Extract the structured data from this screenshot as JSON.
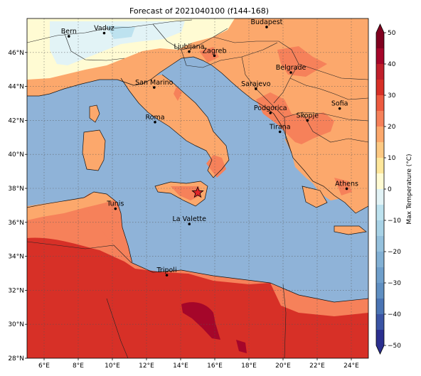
{
  "title": "Forecast of 2021040100 (f144-168)",
  "map": {
    "lon_range": [
      5,
      25
    ],
    "lat_range": [
      28,
      48
    ],
    "x_ticks": [
      {
        "lon": 6,
        "label": "6°E"
      },
      {
        "lon": 8,
        "label": "8°E"
      },
      {
        "lon": 10,
        "label": "10°E"
      },
      {
        "lon": 12,
        "label": "12°E"
      },
      {
        "lon": 14,
        "label": "14°E"
      },
      {
        "lon": 16,
        "label": "16°E"
      },
      {
        "lon": 18,
        "label": "18°E"
      },
      {
        "lon": 20,
        "label": "20°E"
      },
      {
        "lon": 22,
        "label": "22°E"
      },
      {
        "lon": 24,
        "label": "24°E"
      }
    ],
    "y_ticks": [
      {
        "lat": 28,
        "label": "28°N"
      },
      {
        "lat": 30,
        "label": "30°N"
      },
      {
        "lat": 32,
        "label": "32°N"
      },
      {
        "lat": 34,
        "label": "34°N"
      },
      {
        "lat": 36,
        "label": "36°N"
      },
      {
        "lat": 38,
        "label": "38°N"
      },
      {
        "lat": 40,
        "label": "40°N"
      },
      {
        "lat": 42,
        "label": "42°N"
      },
      {
        "lat": 44,
        "label": "44°N"
      },
      {
        "lat": 46,
        "label": "46°N"
      }
    ],
    "cities": [
      {
        "name": "Bern",
        "lon": 7.45,
        "lat": 46.95
      },
      {
        "name": "Vaduz",
        "lon": 9.52,
        "lat": 47.14
      },
      {
        "name": "Budapest",
        "lon": 19.04,
        "lat": 47.5
      },
      {
        "name": "Ljubljana",
        "lon": 14.5,
        "lat": 46.05
      },
      {
        "name": "Zagreb",
        "lon": 15.98,
        "lat": 45.81
      },
      {
        "name": "Belgrade",
        "lon": 20.46,
        "lat": 44.82
      },
      {
        "name": "San Marino",
        "lon": 12.45,
        "lat": 43.94
      },
      {
        "name": "Sarajevo",
        "lon": 18.41,
        "lat": 43.86
      },
      {
        "name": "Sofia",
        "lon": 23.32,
        "lat": 42.7
      },
      {
        "name": "Roma",
        "lon": 12.5,
        "lat": 41.9
      },
      {
        "name": "Podgorica",
        "lon": 19.26,
        "lat": 42.44
      },
      {
        "name": "Skopje",
        "lon": 21.43,
        "lat": 42.0
      },
      {
        "name": "Tirana",
        "lon": 19.82,
        "lat": 41.33
      },
      {
        "name": "Athens",
        "lon": 23.73,
        "lat": 37.98
      },
      {
        "name": "Tunis",
        "lon": 10.18,
        "lat": 36.8
      },
      {
        "name": "La Valette",
        "lon": 14.51,
        "lat": 35.9
      },
      {
        "name": "Tripoli",
        "lon": 13.19,
        "lat": 32.89
      }
    ],
    "star_marker": {
      "lon": 15.0,
      "lat": 37.75,
      "color": "#e0262a"
    }
  },
  "colorbar": {
    "label": "Max Temperature (°C)",
    "levels": [
      -50,
      -45,
      -40,
      -35,
      -30,
      -25,
      -20,
      -15,
      -10,
      -5,
      0,
      5,
      10,
      15,
      20,
      25,
      30,
      35,
      40,
      45,
      50
    ],
    "colors": [
      "#2b2f8f",
      "#3a54a4",
      "#4a74b4",
      "#5f8fc2",
      "#6f9fcb",
      "#82b0d4",
      "#95c1dd",
      "#a8d2e6",
      "#bde2ef",
      "#e2f3f6",
      "#fffbd3",
      "#fee79b",
      "#fdc983",
      "#fca86c",
      "#f6815a",
      "#ed5b40",
      "#d73027",
      "#c01f2b",
      "#a5062a",
      "#80001f"
    ],
    "tick_values": [
      -50,
      -40,
      -30,
      -20,
      -10,
      0,
      10,
      20,
      30,
      40,
      50
    ],
    "tick_labels": [
      "−50",
      "−40",
      "−30",
      "−20",
      "−10",
      "0",
      "10",
      "20",
      "30",
      "40",
      "50"
    ]
  }
}
